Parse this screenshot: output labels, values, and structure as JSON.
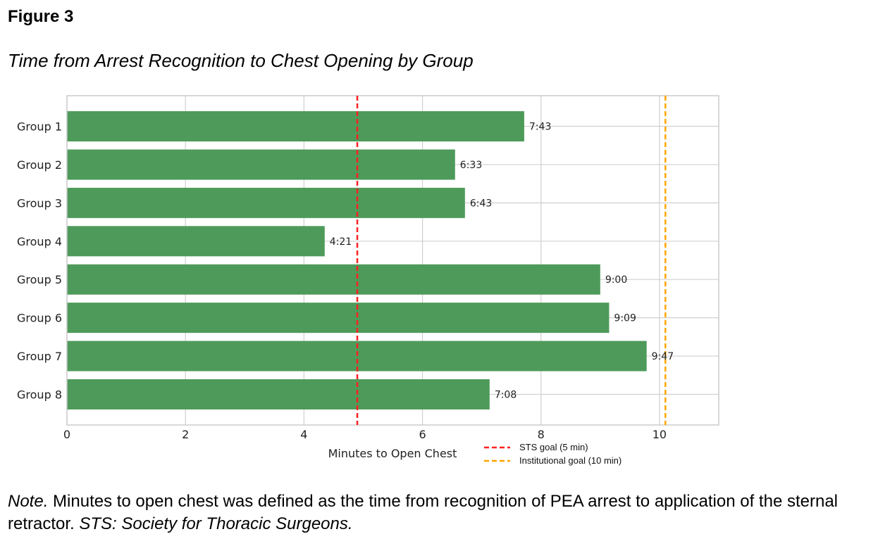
{
  "figure_label": "Figure 3",
  "figure_title": "Time from Arrest Recognition to Chest Opening by Group",
  "note": {
    "prefix": "Note.",
    "text": " Minutes to open chest was defined as the time from recognition of PEA arrest to application of the sternal retractor. ",
    "italic_text": "STS: Society for Thoracic Surgeons."
  },
  "chart_data": {
    "type": "bar",
    "orientation": "horizontal",
    "categories": [
      "Group 1",
      "Group 2",
      "Group 3",
      "Group 4",
      "Group 5",
      "Group 6",
      "Group 7",
      "Group 8"
    ],
    "values": [
      7.717,
      6.55,
      6.717,
      4.35,
      9.0,
      9.15,
      9.783,
      7.133
    ],
    "data_labels": [
      "7:43",
      "6:33",
      "6:43",
      "4:21",
      "9:00",
      "9:09",
      "9:47",
      "7:08"
    ],
    "xlabel": "Minutes to Open Chest",
    "ylabel": "",
    "xlim": [
      0,
      11
    ],
    "xticks": [
      0,
      2,
      4,
      6,
      8,
      10
    ],
    "grid": true,
    "bar_color": "#4e9a5a",
    "reference_lines": [
      {
        "name": "STS goal (5 min)",
        "value": 4.9,
        "color": "#ff2020",
        "style": "dashed"
      },
      {
        "name": "Institutional goal (10 min)",
        "value": 10.1,
        "color": "#ffa500",
        "style": "dashed"
      }
    ],
    "legend_placement": "bottom-right, outside"
  }
}
